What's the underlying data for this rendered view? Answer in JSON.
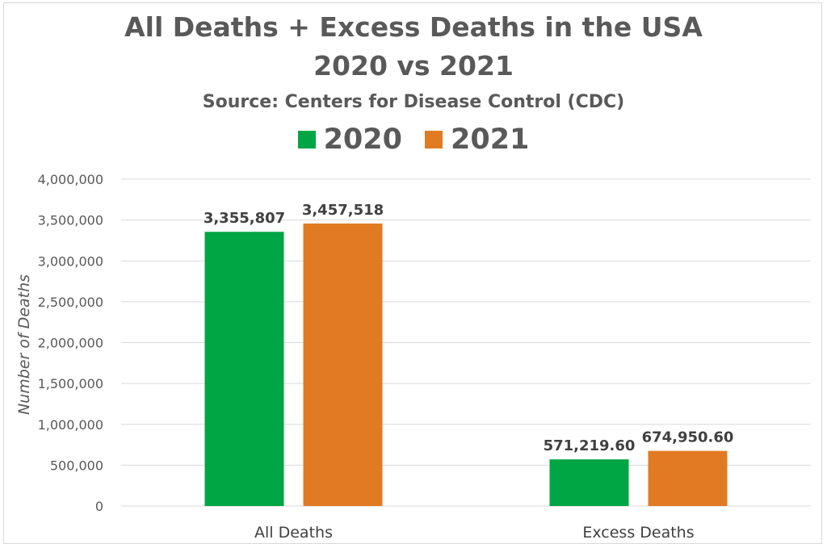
{
  "chart_data": {
    "type": "bar",
    "title": "All Deaths + Excess Deaths in the USA",
    "subtitle_line": "2020 vs 2021",
    "source": "Source: Centers for Disease Control (CDC)",
    "ylabel": "Number of Deaths",
    "xlabel": "",
    "categories": [
      "All Deaths",
      "Excess Deaths"
    ],
    "series": [
      {
        "name": "2020",
        "color": "#00a643",
        "values": [
          3355807,
          571219.6
        ],
        "labels": [
          "3,355,807",
          "571,219.60"
        ]
      },
      {
        "name": "2021",
        "color": "#e07b24",
        "values": [
          3457518,
          674950.6
        ],
        "labels": [
          "3,457,518",
          "674,950.60"
        ]
      }
    ],
    "ylim": [
      0,
      4000000
    ],
    "yticks": [
      0,
      500000,
      1000000,
      1500000,
      2000000,
      2500000,
      3000000,
      3500000,
      4000000
    ],
    "ytick_labels": [
      "0",
      "500,000",
      "1,000,000",
      "1,500,000",
      "2,000,000",
      "2,500,000",
      "3,000,000",
      "3,500,000",
      "4,000,000"
    ],
    "grid": true,
    "legend_position": "top"
  }
}
